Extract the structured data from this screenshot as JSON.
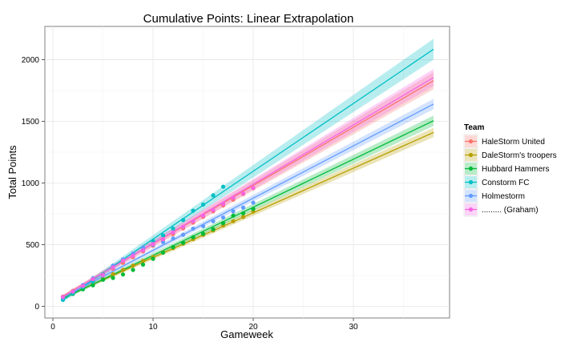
{
  "chart_data": {
    "type": "scatter",
    "title": "Cumulative Points: Linear Extrapolation",
    "xlabel": "Gameweek",
    "ylabel": "Total Points",
    "xlim": [
      -0.8,
      39.6
    ],
    "ylim": [
      -95,
      2270
    ],
    "x_ticks": [
      0,
      10,
      20,
      30
    ],
    "y_ticks": [
      0,
      500,
      1000,
      1500,
      2000
    ],
    "x_tick_labels": [
      "0",
      "10",
      "20",
      "30"
    ],
    "y_tick_labels": [
      "0",
      "500",
      "1000",
      "1500",
      "2000"
    ],
    "grid": true,
    "legend_title": "Team",
    "legend_position": "right",
    "series": [
      {
        "name": "HaleStorm United",
        "color": "#F8766D",
        "fit": {
          "x0": 1,
          "y0": 82,
          "x1": 38,
          "y1": 1830,
          "band0": 12,
          "band1": 70
        },
        "x": [
          1,
          2,
          3,
          4,
          5,
          6,
          7,
          8,
          9,
          10,
          11,
          12,
          13,
          14,
          15,
          16,
          17,
          18,
          19,
          20
        ],
        "y": [
          78,
          125,
          168,
          215,
          262,
          305,
          352,
          398,
          445,
          492,
          538,
          585,
          632,
          678,
          725,
          770,
          818,
          865,
          910,
          958
        ]
      },
      {
        "name": "DaleStorm's troopers",
        "color": "#B79F00",
        "fit": {
          "x0": 1,
          "y0": 70,
          "x1": 38,
          "y1": 1410,
          "band0": 10,
          "band1": 38
        },
        "x": [
          1,
          2,
          3,
          4,
          5,
          6,
          7,
          8,
          9,
          10,
          11,
          12,
          13,
          14,
          15,
          16,
          17,
          18,
          19,
          20
        ],
        "y": [
          68,
          112,
          148,
          185,
          222,
          260,
          295,
          330,
          368,
          400,
          438,
          472,
          508,
          545,
          580,
          615,
          655,
          690,
          725,
          768
        ]
      },
      {
        "name": "Hubbard Hammers",
        "color": "#00BA38",
        "fit": {
          "x0": 1,
          "y0": 62,
          "x1": 38,
          "y1": 1505,
          "band0": 12,
          "band1": 42
        },
        "x": [
          1,
          2,
          3,
          4,
          5,
          6,
          7,
          8,
          9,
          10,
          11,
          12,
          13,
          14,
          15,
          16,
          17,
          18,
          19,
          20
        ],
        "y": [
          58,
          100,
          138,
          170,
          215,
          230,
          258,
          295,
          338,
          385,
          435,
          480,
          515,
          560,
          588,
          625,
          675,
          735,
          755,
          790
        ]
      },
      {
        "name": "Constorm FC",
        "color": "#00BFC4",
        "fit": {
          "x0": 1,
          "y0": 50,
          "x1": 38,
          "y1": 2085,
          "band0": 15,
          "band1": 85
        },
        "x": [
          1,
          2,
          3,
          4,
          5,
          6,
          7,
          8,
          9,
          10,
          11,
          12,
          13,
          14,
          15,
          16,
          17
        ],
        "y": [
          52,
          105,
          155,
          200,
          260,
          320,
          375,
          420,
          470,
          530,
          575,
          630,
          700,
          775,
          825,
          900,
          970
        ]
      },
      {
        "name": "Holmestorm",
        "color": "#619CFF",
        "fit": {
          "x0": 1,
          "y0": 72,
          "x1": 38,
          "y1": 1640,
          "band0": 10,
          "band1": 42
        },
        "x": [
          1,
          2,
          3,
          4,
          5,
          6,
          7,
          8,
          9,
          10,
          11,
          12,
          13,
          14,
          15,
          16,
          17,
          18,
          19,
          20
        ],
        "y": [
          70,
          120,
          172,
          228,
          250,
          330,
          380,
          428,
          478,
          500,
          520,
          550,
          580,
          630,
          650,
          690,
          720,
          770,
          800,
          840
        ]
      },
      {
        "name": "......... (Graham)",
        "color": "#F564E3",
        "fit": {
          "x0": 1,
          "y0": 78,
          "x1": 38,
          "y1": 1855,
          "band0": 12,
          "band1": 70
        },
        "x": [
          1,
          2,
          3,
          4,
          5,
          6,
          7,
          8,
          9,
          10,
          11,
          12,
          13,
          14,
          15,
          16,
          17,
          18,
          19,
          20
        ],
        "y": [
          75,
          120,
          165,
          220,
          255,
          315,
          370,
          410,
          455,
          505,
          545,
          600,
          645,
          690,
          735,
          780,
          830,
          880,
          915,
          960
        ]
      }
    ]
  }
}
